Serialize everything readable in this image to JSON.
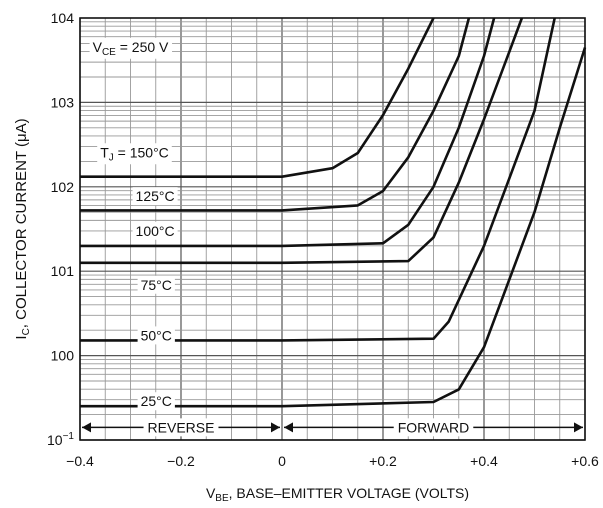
{
  "chart_data": {
    "type": "line",
    "title": "",
    "xlabel": "VBE, BASE–EMITTER VOLTAGE (VOLTS)",
    "xlabel_main": "V",
    "xlabel_sub": "BE",
    "xlabel_rest": ", BASE–EMITTER VOLTAGE (VOLTS)",
    "ylabel": "IC, COLLECTOR CURRENT (μA)",
    "ylabel_main": "I",
    "ylabel_sub": "C",
    "ylabel_rest": ", COLLECTOR CURRENT (μA)",
    "xlim": [
      -0.4,
      0.6
    ],
    "ylim_log10": [
      -1,
      4
    ],
    "y_scale": "log",
    "grid": true,
    "x_ticks": [
      {
        "value": -0.4,
        "label": "−0.4"
      },
      {
        "value": -0.2,
        "label": "−0.2"
      },
      {
        "value": 0,
        "label": "0"
      },
      {
        "value": 0.2,
        "label": "+0.2"
      },
      {
        "value": 0.4,
        "label": "+0.4"
      },
      {
        "value": 0.6,
        "label": "+0.6"
      }
    ],
    "y_ticks": [
      {
        "exp": -1,
        "base": "10",
        "sup": "−1"
      },
      {
        "exp": 0,
        "base": "100",
        "sup": ""
      },
      {
        "exp": 1,
        "base": "101",
        "sup": ""
      },
      {
        "exp": 2,
        "base": "102",
        "sup": ""
      },
      {
        "exp": 3,
        "base": "103",
        "sup": ""
      },
      {
        "exp": 4,
        "base": "104",
        "sup": ""
      }
    ],
    "series": [
      {
        "name": "T_J = 150°C",
        "label_main": "T",
        "label_sub": "J",
        "label_rest": " = 150°C",
        "label_at": [
          -0.36,
          2.35
        ],
        "x": [
          -0.4,
          0.0,
          0.1,
          0.15,
          0.2,
          0.25,
          0.3
        ],
        "log_y": [
          2.12,
          2.12,
          2.22,
          2.4,
          2.85,
          3.4,
          4.0
        ]
      },
      {
        "name": "125°C",
        "label_main": "125°C",
        "label_at": [
          -0.29,
          1.83
        ],
        "x": [
          -0.4,
          0.0,
          0.15,
          0.2,
          0.25,
          0.3,
          0.35,
          0.37
        ],
        "log_y": [
          1.72,
          1.72,
          1.78,
          1.95,
          2.35,
          2.9,
          3.55,
          4.0
        ]
      },
      {
        "name": "100°C",
        "label_main": "100°C",
        "label_at": [
          -0.29,
          1.42
        ],
        "x": [
          -0.4,
          0.0,
          0.2,
          0.25,
          0.3,
          0.35,
          0.4,
          0.42
        ],
        "log_y": [
          1.3,
          1.3,
          1.33,
          1.55,
          2.0,
          2.7,
          3.55,
          4.0
        ]
      },
      {
        "name": "75°C",
        "label_main": "75°C",
        "label_at": [
          -0.28,
          0.78
        ],
        "x": [
          -0.4,
          0.0,
          0.25,
          0.3,
          0.35,
          0.4,
          0.45,
          0.475
        ],
        "log_y": [
          1.1,
          1.1,
          1.12,
          1.4,
          2.05,
          2.8,
          3.6,
          4.0
        ]
      },
      {
        "name": "50°C",
        "label_main": "50°C",
        "label_at": [
          -0.28,
          0.18
        ],
        "x": [
          -0.4,
          0.0,
          0.3,
          0.33,
          0.4,
          0.45,
          0.5,
          0.54
        ],
        "log_y": [
          0.18,
          0.18,
          0.2,
          0.4,
          1.3,
          2.1,
          2.9,
          4.0
        ]
      },
      {
        "name": "25°C",
        "label_main": "25°C",
        "label_at": [
          -0.28,
          -0.6
        ],
        "x": [
          -0.4,
          0.0,
          0.3,
          0.35,
          0.4,
          0.45,
          0.5,
          0.55,
          0.6
        ],
        "log_y": [
          -0.6,
          -0.6,
          -0.55,
          -0.4,
          0.1,
          0.9,
          1.7,
          2.7,
          3.65
        ]
      }
    ],
    "annotations": [
      {
        "text": "REVERSE",
        "x": -0.2,
        "log_y": -0.85
      },
      {
        "text": "FORWARD",
        "x": 0.3,
        "log_y": -0.85
      }
    ],
    "vce_annotation": {
      "main": "V",
      "sub": "CE",
      "rest": " = 250 V",
      "x": -0.3,
      "log_y": 3.6
    }
  }
}
